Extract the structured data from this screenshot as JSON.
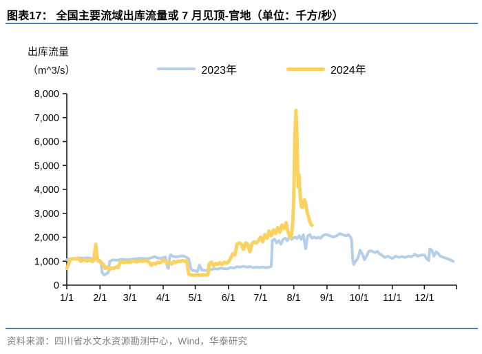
{
  "header": {
    "title": "图表17：  全国主要流域出库流量或 7 月见顶-官地（单位：千方/秒）"
  },
  "y_axis_title": {
    "line1": "出库流量",
    "line2": "（m^3/s）"
  },
  "footer": {
    "source": "资料来源：四川省水文水资源勘测中心，Wind，华泰研究"
  },
  "colors": {
    "accent_blue_line": "#4A7EBB",
    "axis": "#1a1a1a",
    "tick_text": "#000000",
    "source_text": "#7f7f7f",
    "series_2023": "#B5CFE8",
    "series_2024": "#FBD25F"
  },
  "chart_data": {
    "type": "line",
    "title": "全国主要流域出库流量或 7 月见顶-官地（单位：千方/秒）",
    "ylabel": "出库流量（m^3/s）",
    "xlabel": "",
    "ylim": [
      0,
      8000
    ],
    "y_tick_step": 1000,
    "grid": false,
    "legend_position": "top-center",
    "x_range_days": [
      1,
      365
    ],
    "x_tick_days": [
      1,
      32,
      60,
      91,
      121,
      152,
      182,
      213,
      244,
      274,
      305,
      335,
      365
    ],
    "x_tick_labels": [
      "1/1",
      "2/1",
      "3/1",
      "4/1",
      "5/1",
      "6/1",
      "7/1",
      "8/1",
      "9/1",
      "10/1",
      "11/1",
      "12/1",
      ""
    ],
    "series": [
      {
        "name": "2023年",
        "color": "#B5CFE8",
        "width": 4,
        "points": [
          [
            1,
            1060
          ],
          [
            4,
            1100
          ],
          [
            8,
            1090
          ],
          [
            12,
            1140
          ],
          [
            16,
            1120
          ],
          [
            20,
            1140
          ],
          [
            24,
            1110
          ],
          [
            28,
            1090
          ],
          [
            31,
            1060
          ],
          [
            33,
            980
          ],
          [
            34,
            520
          ],
          [
            36,
            430
          ],
          [
            38,
            470
          ],
          [
            40,
            540
          ],
          [
            41,
            980
          ],
          [
            44,
            1060
          ],
          [
            48,
            1040
          ],
          [
            52,
            1080
          ],
          [
            56,
            1060
          ],
          [
            60,
            1070
          ],
          [
            64,
            1090
          ],
          [
            68,
            1110
          ],
          [
            72,
            1120
          ],
          [
            76,
            1100
          ],
          [
            80,
            1140
          ],
          [
            83,
            1190
          ],
          [
            86,
            1130
          ],
          [
            89,
            1110
          ],
          [
            91,
            1150
          ],
          [
            93,
            1170
          ],
          [
            95,
            740
          ],
          [
            96,
            700
          ],
          [
            97,
            1160
          ],
          [
            98,
            1270
          ],
          [
            100,
            1200
          ],
          [
            103,
            1180
          ],
          [
            106,
            1200
          ],
          [
            109,
            1220
          ],
          [
            112,
            1180
          ],
          [
            115,
            1100
          ],
          [
            117,
            680
          ],
          [
            118,
            620
          ],
          [
            121,
            600
          ],
          [
            123,
            570
          ],
          [
            125,
            830
          ],
          [
            127,
            640
          ],
          [
            130,
            610
          ],
          [
            133,
            630
          ],
          [
            136,
            650
          ],
          [
            139,
            690
          ],
          [
            142,
            670
          ],
          [
            145,
            710
          ],
          [
            148,
            690
          ],
          [
            151,
            680
          ],
          [
            154,
            740
          ],
          [
            157,
            710
          ],
          [
            160,
            770
          ],
          [
            163,
            750
          ],
          [
            166,
            790
          ],
          [
            169,
            750
          ],
          [
            172,
            770
          ],
          [
            175,
            730
          ],
          [
            178,
            750
          ],
          [
            181,
            740
          ],
          [
            184,
            760
          ],
          [
            187,
            730
          ],
          [
            190,
            750
          ],
          [
            192,
            780
          ],
          [
            193,
            1870
          ],
          [
            195,
            1920
          ],
          [
            197,
            1760
          ],
          [
            199,
            1860
          ],
          [
            201,
            1710
          ],
          [
            203,
            1910
          ],
          [
            205,
            1960
          ],
          [
            207,
            1860
          ],
          [
            209,
            2010
          ],
          [
            211,
            1910
          ],
          [
            212,
            1960
          ],
          [
            214,
            2010
          ],
          [
            216,
            1950
          ],
          [
            218,
            2060
          ],
          [
            220,
            1910
          ],
          [
            222,
            2110
          ],
          [
            224,
            1520
          ],
          [
            226,
            2060
          ],
          [
            228,
            2110
          ],
          [
            230,
            1960
          ],
          [
            232,
            2010
          ],
          [
            234,
            1960
          ],
          [
            236,
            2010
          ],
          [
            238,
            1960
          ],
          [
            240,
            2060
          ],
          [
            242,
            2110
          ],
          [
            244,
            2110
          ],
          [
            247,
            2060
          ],
          [
            250,
            2010
          ],
          [
            253,
            2060
          ],
          [
            256,
            2150
          ],
          [
            259,
            2100
          ],
          [
            262,
            2060
          ],
          [
            264,
            2110
          ],
          [
            266,
            2010
          ],
          [
            267,
            1890
          ],
          [
            268,
            1100
          ],
          [
            269,
            860
          ],
          [
            271,
            1010
          ],
          [
            273,
            1130
          ],
          [
            275,
            1460
          ],
          [
            277,
            1310
          ],
          [
            279,
            1060
          ],
          [
            281,
            1210
          ],
          [
            283,
            1410
          ],
          [
            285,
            1440
          ],
          [
            287,
            1390
          ],
          [
            289,
            1360
          ],
          [
            291,
            1410
          ],
          [
            293,
            1310
          ],
          [
            295,
            1260
          ],
          [
            298,
            1160
          ],
          [
            301,
            1210
          ],
          [
            303,
            1160
          ],
          [
            305,
            1110
          ],
          [
            308,
            1210
          ],
          [
            311,
            1160
          ],
          [
            314,
            1190
          ],
          [
            317,
            1160
          ],
          [
            320,
            1210
          ],
          [
            323,
            1190
          ],
          [
            326,
            1290
          ],
          [
            329,
            1210
          ],
          [
            332,
            1260
          ],
          [
            335,
            1260
          ],
          [
            337,
            1110
          ],
          [
            339,
            1030
          ],
          [
            340,
            1510
          ],
          [
            342,
            1460
          ],
          [
            344,
            1210
          ],
          [
            346,
            1390
          ],
          [
            348,
            1310
          ],
          [
            350,
            1210
          ],
          [
            353,
            1160
          ],
          [
            356,
            1110
          ],
          [
            359,
            1060
          ],
          [
            362,
            990
          ]
        ]
      },
      {
        "name": "2024年",
        "color": "#FBD25F",
        "width": 5,
        "points": [
          [
            1,
            700
          ],
          [
            2,
            800
          ],
          [
            4,
            1060
          ],
          [
            7,
            1110
          ],
          [
            10,
            1090
          ],
          [
            12,
            1130
          ],
          [
            14,
            1000
          ],
          [
            17,
            1060
          ],
          [
            20,
            1010
          ],
          [
            23,
            1040
          ],
          [
            25,
            990
          ],
          [
            26,
            1020
          ],
          [
            27,
            1350
          ],
          [
            28,
            1700
          ],
          [
            29,
            1250
          ],
          [
            30,
            1020
          ],
          [
            31,
            1000
          ],
          [
            33,
            950
          ],
          [
            35,
            870
          ],
          [
            37,
            700
          ],
          [
            39,
            760
          ],
          [
            41,
            650
          ],
          [
            43,
            720
          ],
          [
            45,
            700
          ],
          [
            47,
            760
          ],
          [
            49,
            730
          ],
          [
            51,
            980
          ],
          [
            54,
            950
          ],
          [
            57,
            970
          ],
          [
            60,
            960
          ],
          [
            63,
            1010
          ],
          [
            66,
            970
          ],
          [
            69,
            1020
          ],
          [
            72,
            990
          ],
          [
            75,
            1030
          ],
          [
            78,
            960
          ],
          [
            80,
            830
          ],
          [
            82,
            910
          ],
          [
            84,
            880
          ],
          [
            86,
            960
          ],
          [
            88,
            930
          ],
          [
            91,
            1030
          ],
          [
            93,
            990
          ],
          [
            95,
            910
          ],
          [
            97,
            960
          ],
          [
            99,
            880
          ],
          [
            101,
            990
          ],
          [
            103,
            940
          ],
          [
            105,
            1010
          ],
          [
            107,
            980
          ],
          [
            109,
            1030
          ],
          [
            111,
            1000
          ],
          [
            113,
            1020
          ],
          [
            114,
            700
          ],
          [
            115,
            460
          ],
          [
            117,
            430
          ],
          [
            120,
            410
          ],
          [
            123,
            430
          ],
          [
            126,
            415
          ],
          [
            129,
            435
          ],
          [
            132,
            420
          ],
          [
            133,
            440
          ],
          [
            134,
            890
          ],
          [
            136,
            960
          ],
          [
            138,
            810
          ],
          [
            140,
            910
          ],
          [
            142,
            870
          ],
          [
            144,
            940
          ],
          [
            146,
            860
          ],
          [
            148,
            960
          ],
          [
            150,
            910
          ],
          [
            152,
            970
          ],
          [
            154,
            1110
          ],
          [
            156,
            1310
          ],
          [
            158,
            1260
          ],
          [
            160,
            1710
          ],
          [
            162,
            1760
          ],
          [
            164,
            1710
          ],
          [
            166,
            1490
          ],
          [
            168,
            1760
          ],
          [
            170,
            1710
          ],
          [
            172,
            1390
          ],
          [
            174,
            1730
          ],
          [
            176,
            1810
          ],
          [
            178,
            1760
          ],
          [
            180,
            1860
          ],
          [
            182,
            2010
          ],
          [
            184,
            1810
          ],
          [
            186,
            2110
          ],
          [
            188,
            1960
          ],
          [
            190,
            2260
          ],
          [
            192,
            2060
          ],
          [
            194,
            2310
          ],
          [
            196,
            2160
          ],
          [
            198,
            2410
          ],
          [
            200,
            2210
          ],
          [
            202,
            2510
          ],
          [
            204,
            2360
          ],
          [
            206,
            2610
          ],
          [
            207,
            2310
          ],
          [
            209,
            2060
          ],
          [
            210,
            1990
          ],
          [
            211,
            2110
          ],
          [
            212,
            2600
          ],
          [
            213,
            3600
          ],
          [
            214,
            6200
          ],
          [
            215,
            7300
          ],
          [
            216,
            6300
          ],
          [
            217,
            4100
          ],
          [
            218,
            4600
          ],
          [
            219,
            3700
          ],
          [
            220,
            3300
          ],
          [
            221,
            3240
          ],
          [
            222,
            3480
          ],
          [
            223,
            3560
          ],
          [
            224,
            3420
          ],
          [
            225,
            3160
          ],
          [
            226,
            2960
          ],
          [
            227,
            2810
          ],
          [
            228,
            2660
          ],
          [
            229,
            2540
          ],
          [
            230,
            2500
          ]
        ]
      }
    ]
  }
}
